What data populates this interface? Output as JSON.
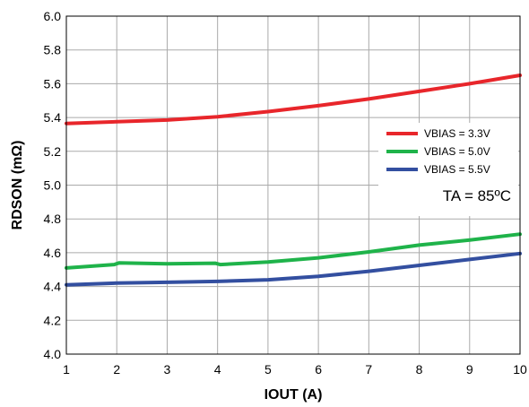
{
  "chart_data": {
    "type": "line",
    "title": "",
    "xlabel": "IOUT (A)",
    "ylabel": "RDSON (mΩ)",
    "xlim": [
      1,
      10
    ],
    "ylim": [
      4.0,
      6.0
    ],
    "xticks": [
      "1",
      "2",
      "3",
      "4",
      "5",
      "6",
      "7",
      "8",
      "9",
      "10"
    ],
    "yticks": [
      "4.0",
      "4.2",
      "4.4",
      "4.6",
      "4.8",
      "5.0",
      "5.2",
      "5.4",
      "5.6",
      "5.8",
      "6.0"
    ],
    "grid": true,
    "legend_position": "right",
    "annotation": "TA = 85ºC",
    "series": [
      {
        "name": "VBIAS = 3.3V",
        "color": "#e8262b",
        "x": [
          1,
          2,
          3,
          4,
          5,
          6,
          7,
          8,
          9,
          10
        ],
        "y": [
          5.365,
          5.375,
          5.385,
          5.405,
          5.435,
          5.47,
          5.51,
          5.555,
          5.6,
          5.65
        ]
      },
      {
        "name": "VBIAS = 5.0V",
        "color": "#1fb34a",
        "x": [
          1,
          1.95,
          2.05,
          3,
          3.95,
          4.05,
          5,
          6,
          7,
          8,
          9,
          10
        ],
        "y": [
          4.51,
          4.53,
          4.54,
          4.535,
          4.538,
          4.53,
          4.545,
          4.57,
          4.605,
          4.645,
          4.675,
          4.71
        ]
      },
      {
        "name": "VBIAS = 5.5V",
        "color": "#334fa0",
        "x": [
          1,
          2,
          3,
          4,
          5,
          6,
          7,
          8,
          9,
          10
        ],
        "y": [
          4.41,
          4.42,
          4.425,
          4.43,
          4.44,
          4.46,
          4.49,
          4.525,
          4.56,
          4.595
        ]
      }
    ]
  }
}
